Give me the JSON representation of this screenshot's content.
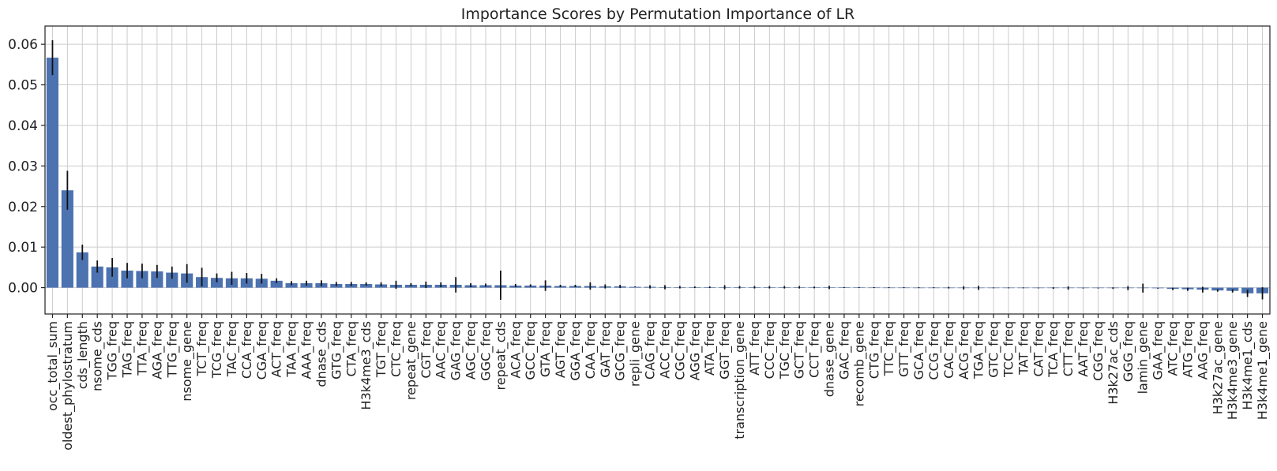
{
  "chart_data": {
    "type": "bar",
    "title": "Importance Scores by Permutation Importance of LR",
    "xlabel": "",
    "ylabel": "",
    "ylim": [
      -0.0065,
      0.0645
    ],
    "yticks": [
      0.0,
      0.01,
      0.02,
      0.03,
      0.04,
      0.05,
      0.06
    ],
    "ytick_labels": [
      "0.00",
      "0.01",
      "0.02",
      "0.03",
      "0.04",
      "0.05",
      "0.06"
    ],
    "grid": true,
    "bar_color": "#4c72b0",
    "error_color": "#111111",
    "categories": [
      "occ_total_sum",
      "oldest_phylostratum",
      "cds_length",
      "nsome_cds",
      "TGG_freq",
      "TAG_freq",
      "TTA_freq",
      "AGA_freq",
      "TTG_freq",
      "nsome_gene",
      "TCT_freq",
      "TCG_freq",
      "TAC_freq",
      "CCA_freq",
      "CGA_freq",
      "ACT_freq",
      "TAA_freq",
      "AAA_freq",
      "dnase_cds",
      "GTG_freq",
      "CTA_freq",
      "H3k4me3_cds",
      "TGT_freq",
      "CTC_freq",
      "repeat_gene",
      "CGT_freq",
      "AAC_freq",
      "GAG_freq",
      "AGC_freq",
      "GGC_freq",
      "repeat_cds",
      "ACA_freq",
      "GCC_freq",
      "GTA_freq",
      "AGT_freq",
      "GGA_freq",
      "CAA_freq",
      "GAT_freq",
      "GCG_freq",
      "repli_gene",
      "CAG_freq",
      "ACC_freq",
      "CGC_freq",
      "AGG_freq",
      "ATA_freq",
      "GGT_freq",
      "transcription_gene",
      "ATT_freq",
      "CCC_freq",
      "TGC_freq",
      "GCT_freq",
      "CCT_freq",
      "dnase_gene",
      "GAC_freq",
      "recomb_gene",
      "CTG_freq",
      "TTC_freq",
      "GTT_freq",
      "GCA_freq",
      "CCG_freq",
      "CAC_freq",
      "ACG_freq",
      "TGA_freq",
      "GTC_freq",
      "TCC_freq",
      "TAT_freq",
      "CAT_freq",
      "TCA_freq",
      "CTT_freq",
      "AAT_freq",
      "CGG_freq",
      "H3k27ac_cds",
      "GGG_freq",
      "lamin_gene",
      "GAA_freq",
      "ATC_freq",
      "ATG_freq",
      "AAG_freq",
      "H3k27ac_gene",
      "H3k4me3_gene",
      "H3k4me1_cds",
      "H3k4me1_gene"
    ],
    "values": [
      0.0567,
      0.024,
      0.0087,
      0.0052,
      0.005,
      0.0042,
      0.0041,
      0.004,
      0.0037,
      0.0035,
      0.0026,
      0.0024,
      0.0023,
      0.0023,
      0.0022,
      0.0017,
      0.0011,
      0.0011,
      0.0011,
      0.0009,
      0.0009,
      0.0009,
      0.0008,
      0.0007,
      0.0007,
      0.0007,
      0.0007,
      0.0007,
      0.0006,
      0.0006,
      0.0006,
      0.0005,
      0.0005,
      0.0005,
      0.0004,
      0.0004,
      0.0004,
      0.0003,
      0.0003,
      0.0002,
      0.0002,
      0.0001,
      0.0001,
      0.0001,
      0.0001,
      0.0001,
      0.0001,
      0.0001,
      0.0001,
      0.0001,
      0.0001,
      5e-05,
      5e-05,
      4e-05,
      3e-05,
      2e-05,
      1e-05,
      1e-05,
      0.0,
      0.0,
      0.0,
      -5e-05,
      -5e-05,
      -5e-05,
      -5e-05,
      -5e-05,
      -8e-05,
      -0.0001,
      -0.0001,
      -0.0001,
      -0.0001,
      -0.00012,
      -0.00012,
      -0.00012,
      -0.00015,
      -0.0003,
      -0.0004,
      -0.0005,
      -0.0007,
      -0.0008,
      -0.0014,
      -0.0014
    ],
    "errors": [
      0.0043,
      0.0048,
      0.0019,
      0.0015,
      0.0023,
      0.0019,
      0.0018,
      0.0016,
      0.0015,
      0.0023,
      0.0023,
      0.0011,
      0.0016,
      0.0013,
      0.0012,
      0.0006,
      0.0005,
      0.0006,
      0.0007,
      0.0005,
      0.0005,
      0.0004,
      0.0005,
      0.001,
      0.0004,
      0.0008,
      0.0006,
      0.0019,
      0.0005,
      0.0004,
      0.0036,
      0.0004,
      0.0003,
      0.0013,
      0.0003,
      0.0003,
      0.0009,
      0.0005,
      0.0004,
      0.0001,
      0.0004,
      0.0005,
      0.0003,
      0.0002,
      0.0002,
      0.0005,
      0.0003,
      0.0003,
      0.0003,
      0.0003,
      0.0003,
      0.0002,
      0.0004,
      0.0001,
      0.0001,
      0.0001,
      0.0001,
      0.0001,
      0.0001,
      0.0001,
      0.0002,
      0.0004,
      0.0005,
      0.0001,
      0.0001,
      0.0001,
      0.0001,
      0.0002,
      0.0004,
      0.0001,
      0.0001,
      0.0002,
      0.0005,
      0.0011,
      0.0001,
      0.0003,
      0.0004,
      0.0007,
      0.0003,
      0.0004,
      0.0009,
      0.0015
    ]
  }
}
